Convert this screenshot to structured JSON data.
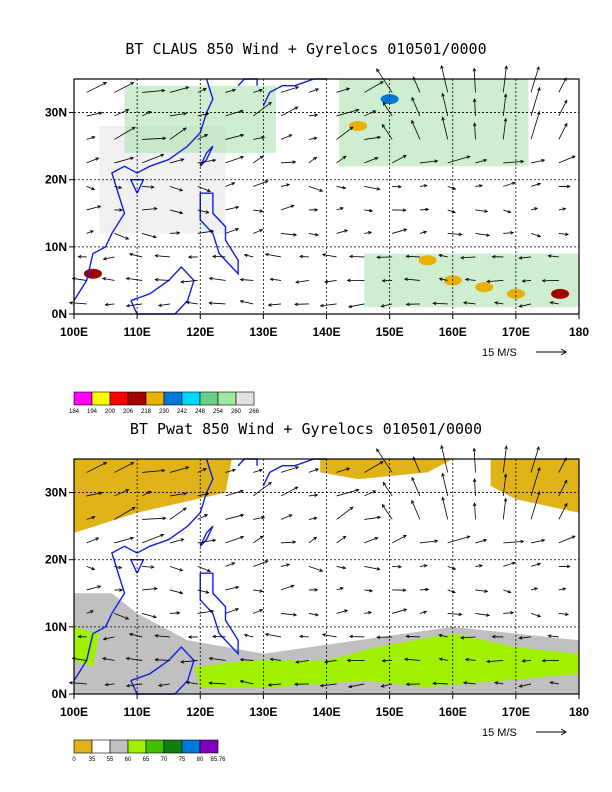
{
  "chart_data": [
    {
      "type": "heatmap",
      "title": "BT CLAUS 850 Wind + Gyrelocs 010501/0000",
      "field": "brightness temperature",
      "x_ticks": [
        "100E",
        "110E",
        "120E",
        "130E",
        "140E",
        "150E",
        "160E",
        "170E",
        "180"
      ],
      "y_ticks": [
        "0N",
        "10N",
        "20N",
        "30N"
      ],
      "xlim": [
        100,
        180
      ],
      "ylim": [
        0,
        35
      ],
      "grid": true,
      "vector_scale_label": "15 M/S",
      "colorbar": {
        "labels": [
          "184",
          "194",
          "200",
          "206",
          "218",
          "230",
          "242",
          "248",
          "254",
          "260",
          "266"
        ],
        "colors": [
          "#ff00ff",
          "#ffff00",
          "#ff0000",
          "#a00000",
          "#e8b000",
          "#0078d8",
          "#00d8ff",
          "#68d088",
          "#a0e8a0",
          "#e0e0e0"
        ]
      },
      "regions": [
        {
          "level": "light",
          "x": [
            104,
            124,
            124,
            104
          ],
          "y": [
            12,
            12,
            28,
            28
          ]
        },
        {
          "level": "green",
          "x": [
            108,
            132,
            132,
            108
          ],
          "y": [
            24,
            24,
            34,
            34
          ]
        },
        {
          "level": "green",
          "x": [
            142,
            172,
            172,
            142
          ],
          "y": [
            22,
            22,
            35,
            35
          ]
        },
        {
          "level": "green",
          "x": [
            146,
            180,
            180,
            146
          ],
          "y": [
            1,
            1,
            9,
            9
          ]
        }
      ]
    },
    {
      "type": "heatmap",
      "title": "BT Pwat 850 Wind + Gyrelocs 010501/0000",
      "field": "precipitable water",
      "x_ticks": [
        "100E",
        "110E",
        "120E",
        "130E",
        "140E",
        "150E",
        "160E",
        "170E",
        "180"
      ],
      "y_ticks": [
        "0N",
        "10N",
        "20N",
        "30N"
      ],
      "xlim": [
        100,
        180
      ],
      "ylim": [
        0,
        35
      ],
      "grid": true,
      "vector_scale_label": "15 M/S",
      "colorbar": {
        "labels": [
          "0",
          "35",
          "55",
          "60",
          "65",
          "70",
          "75",
          "80",
          "85.76"
        ],
        "colors": [
          "#e0b418",
          "#ffffff",
          "#c0c0c0",
          "#a0f000",
          "#40c000",
          "#108010",
          "#0078d8",
          "#8000c0"
        ]
      }
    }
  ]
}
